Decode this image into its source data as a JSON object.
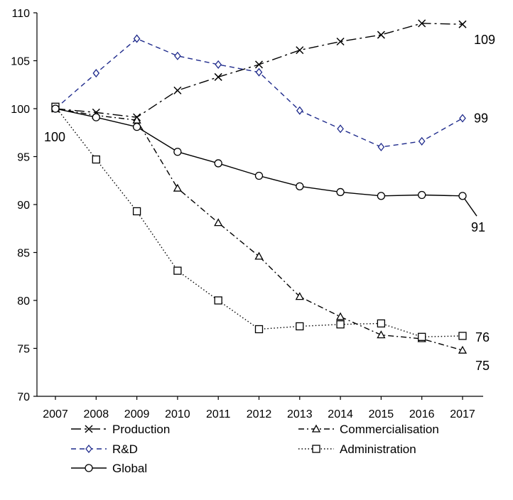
{
  "chart_data": {
    "type": "line",
    "title": "",
    "xlabel": "",
    "ylabel": "",
    "x": [
      2007,
      2008,
      2009,
      2010,
      2011,
      2012,
      2013,
      2014,
      2015,
      2016,
      2017
    ],
    "ylim": [
      70,
      110
    ],
    "yticks": [
      70,
      75,
      80,
      85,
      90,
      95,
      100,
      105,
      110
    ],
    "grid": false,
    "legend_position": "bottom",
    "series": [
      {
        "name": "Production",
        "marker": "x",
        "line_style": "long-dash-dot",
        "color": "#000000",
        "values": [
          100,
          99.6,
          99.1,
          101.9,
          103.3,
          104.6,
          106.1,
          107.0,
          107.7,
          108.9,
          108.8
        ],
        "end_label": "109"
      },
      {
        "name": "Commercialisation",
        "marker": "triangle",
        "line_style": "dash-dot",
        "color": "#000000",
        "values": [
          100,
          99.3,
          98.8,
          91.7,
          88.1,
          84.6,
          80.4,
          78.3,
          76.4,
          76.0,
          74.8
        ],
        "end_label": "75"
      },
      {
        "name": "R&D",
        "marker": "diamond",
        "line_style": "dash",
        "color": "#1f2b8c",
        "values": [
          100,
          103.7,
          107.3,
          105.5,
          104.6,
          103.8,
          99.8,
          97.9,
          96.0,
          96.6,
          99.0
        ],
        "end_label": "99"
      },
      {
        "name": "Administration",
        "marker": "square",
        "line_style": "dot",
        "color": "#000000",
        "values": [
          100.2,
          94.7,
          89.3,
          83.1,
          80.0,
          77.0,
          77.3,
          77.5,
          77.6,
          76.2,
          76.3
        ],
        "end_label": "76"
      },
      {
        "name": "Global",
        "marker": "circle",
        "line_style": "solid",
        "color": "#000000",
        "values": [
          100,
          99.1,
          98.1,
          95.5,
          94.3,
          93.0,
          91.9,
          91.3,
          90.9,
          91.0,
          90.9
        ],
        "tail_value": 88.8,
        "end_label": "91"
      }
    ],
    "start_label": "100"
  }
}
